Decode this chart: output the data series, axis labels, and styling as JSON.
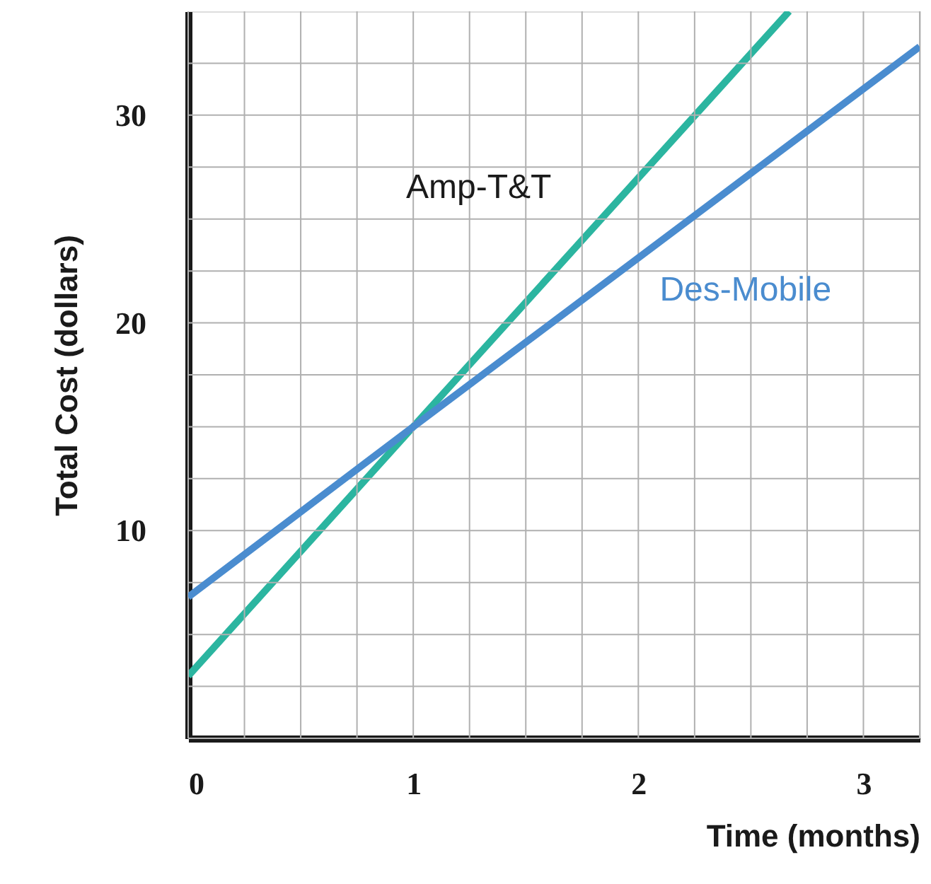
{
  "chart_data": {
    "type": "line",
    "xlabel": "Time (months)",
    "ylabel": "Total Cost (dollars)",
    "series": [
      {
        "name": "Amp-T&T",
        "color": "#2bb5a0",
        "x": [
          0,
          1,
          2.67
        ],
        "values": [
          3,
          15,
          35
        ]
      },
      {
        "name": "Des-Mobile",
        "color": "#4a8ccf",
        "x": [
          0,
          1,
          3.25
        ],
        "values": [
          6.8,
          15,
          33.3
        ]
      }
    ],
    "xlim": [
      0,
      3.25
    ],
    "ylim": [
      0,
      35
    ],
    "xticks": [
      0,
      {
        "value": 0.25,
        "label": null
      },
      {
        "value": 0.5,
        "label": null
      },
      {
        "value": 0.75,
        "label": null
      },
      1,
      {
        "value": 1.25,
        "label": null
      },
      {
        "value": 1.5,
        "label": null
      },
      {
        "value": 1.75,
        "label": null
      },
      2,
      {
        "value": 2.25,
        "label": null
      },
      {
        "value": 2.5,
        "label": null
      },
      {
        "value": 2.75,
        "label": null
      },
      3,
      {
        "value": 3.25,
        "label": null
      }
    ],
    "yticks": [
      {
        "value": 0,
        "label": null
      },
      {
        "value": 2.5,
        "label": null
      },
      {
        "value": 5,
        "label": null
      },
      {
        "value": 7.5,
        "label": null
      },
      10,
      {
        "value": 12.5,
        "label": null
      },
      {
        "value": 15,
        "label": null
      },
      {
        "value": 17.5,
        "label": null
      },
      20,
      {
        "value": 22.5,
        "label": null
      },
      {
        "value": 25,
        "label": null
      },
      {
        "value": 27.5,
        "label": null
      },
      30,
      {
        "value": 32.5,
        "label": null
      }
    ],
    "grid": true,
    "legend": false,
    "marker": "none",
    "line_style": "solid"
  }
}
